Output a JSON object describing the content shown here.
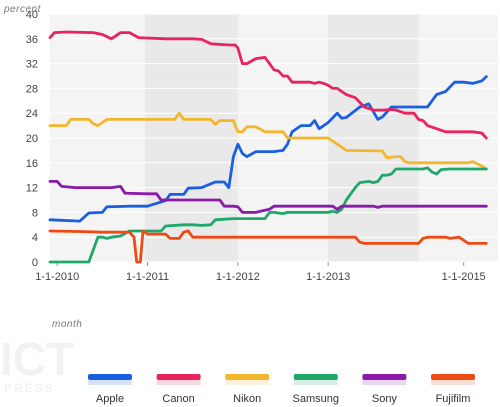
{
  "chart_data": {
    "type": "line",
    "ylabel": "percent",
    "xlabel": "month",
    "ylim": [
      0,
      40
    ],
    "y_ticks": [
      0,
      4,
      8,
      12,
      16,
      20,
      24,
      28,
      32,
      36,
      40
    ],
    "x_ticks": [
      "1-1-2010",
      "1-1-2011",
      "1-1-2012",
      "1-1-2013",
      "1-1-2015"
    ],
    "x_tick_positions": [
      2010,
      2011,
      2012,
      2013,
      2014.5
    ],
    "xlim": [
      2009.92,
      2014.88
    ],
    "grid": true,
    "legend_position": "bottom",
    "series": [
      {
        "name": "Apple",
        "color": "#1a5fe0",
        "points": [
          [
            2009.92,
            6.8
          ],
          [
            2010.25,
            6.6
          ],
          [
            2010.35,
            7.9
          ],
          [
            2010.5,
            8.0
          ],
          [
            2010.55,
            8.9
          ],
          [
            2010.8,
            9.0
          ],
          [
            2011.0,
            9.0
          ],
          [
            2011.2,
            9.9
          ],
          [
            2011.25,
            10.9
          ],
          [
            2011.4,
            10.9
          ],
          [
            2011.45,
            11.9
          ],
          [
            2011.6,
            12.0
          ],
          [
            2011.75,
            12.9
          ],
          [
            2011.85,
            12.9
          ],
          [
            2011.9,
            12.0
          ],
          [
            2011.95,
            17.0
          ],
          [
            2012.0,
            19.0
          ],
          [
            2012.05,
            17.5
          ],
          [
            2012.1,
            17.0
          ],
          [
            2012.2,
            17.8
          ],
          [
            2012.4,
            17.8
          ],
          [
            2012.5,
            18.0
          ],
          [
            2012.55,
            19.0
          ],
          [
            2012.6,
            21.0
          ],
          [
            2012.7,
            22.0
          ],
          [
            2012.8,
            22.0
          ],
          [
            2012.85,
            22.8
          ],
          [
            2012.9,
            21.5
          ],
          [
            2013.0,
            22.5
          ],
          [
            2013.1,
            24.0
          ],
          [
            2013.15,
            23.2
          ],
          [
            2013.2,
            23.3
          ],
          [
            2013.35,
            25.0
          ],
          [
            2013.45,
            25.5
          ],
          [
            2013.55,
            23.0
          ],
          [
            2013.6,
            23.4
          ],
          [
            2013.7,
            25.0
          ],
          [
            2014.0,
            25.0
          ],
          [
            2014.1,
            25.0
          ],
          [
            2014.2,
            27.0
          ],
          [
            2014.3,
            27.5
          ],
          [
            2014.4,
            29.0
          ],
          [
            2014.5,
            29.0
          ],
          [
            2014.6,
            28.8
          ],
          [
            2014.7,
            29.2
          ],
          [
            2014.75,
            29.9
          ]
        ]
      },
      {
        "name": "Canon",
        "color": "#e8245c",
        "points": [
          [
            2009.92,
            36.2
          ],
          [
            2009.97,
            37.0
          ],
          [
            2010.1,
            37.1
          ],
          [
            2010.4,
            37.0
          ],
          [
            2010.5,
            36.7
          ],
          [
            2010.6,
            36.0
          ],
          [
            2010.7,
            37.0
          ],
          [
            2010.8,
            37.0
          ],
          [
            2010.9,
            36.2
          ],
          [
            2011.2,
            36.0
          ],
          [
            2011.5,
            36.0
          ],
          [
            2011.6,
            35.9
          ],
          [
            2011.7,
            35.2
          ],
          [
            2011.9,
            35.0
          ],
          [
            2011.97,
            35.0
          ],
          [
            2012.0,
            34.5
          ],
          [
            2012.05,
            32.0
          ],
          [
            2012.1,
            32.0
          ],
          [
            2012.2,
            32.8
          ],
          [
            2012.3,
            33.0
          ],
          [
            2012.4,
            31.0
          ],
          [
            2012.45,
            30.8
          ],
          [
            2012.5,
            30.0
          ],
          [
            2012.55,
            30.0
          ],
          [
            2012.6,
            29.0
          ],
          [
            2012.8,
            29.0
          ],
          [
            2012.85,
            28.8
          ],
          [
            2012.9,
            29.0
          ],
          [
            2012.95,
            28.8
          ],
          [
            2013.0,
            28.5
          ],
          [
            2013.05,
            28.0
          ],
          [
            2013.1,
            28.0
          ],
          [
            2013.2,
            27.0
          ],
          [
            2013.3,
            26.5
          ],
          [
            2013.4,
            25.0
          ],
          [
            2013.5,
            24.5
          ],
          [
            2013.6,
            24.5
          ],
          [
            2013.7,
            24.6
          ],
          [
            2013.75,
            24.5
          ],
          [
            2013.85,
            24.0
          ],
          [
            2013.95,
            24.0
          ],
          [
            2014.0,
            23.0
          ],
          [
            2014.05,
            22.8
          ],
          [
            2014.1,
            22.0
          ],
          [
            2014.2,
            21.5
          ],
          [
            2014.3,
            21.0
          ],
          [
            2014.6,
            21.0
          ],
          [
            2014.7,
            20.8
          ],
          [
            2014.75,
            20.0
          ]
        ]
      },
      {
        "name": "Nikon",
        "color": "#f2b72c",
        "points": [
          [
            2009.92,
            22.0
          ],
          [
            2010.1,
            22.0
          ],
          [
            2010.15,
            23.0
          ],
          [
            2010.35,
            23.0
          ],
          [
            2010.4,
            22.3
          ],
          [
            2010.45,
            22.0
          ],
          [
            2010.55,
            23.0
          ],
          [
            2010.9,
            23.0
          ],
          [
            2011.1,
            23.0
          ],
          [
            2011.3,
            23.0
          ],
          [
            2011.35,
            24.0
          ],
          [
            2011.4,
            23.0
          ],
          [
            2011.55,
            23.0
          ],
          [
            2011.7,
            23.0
          ],
          [
            2011.75,
            22.2
          ],
          [
            2011.8,
            22.8
          ],
          [
            2011.95,
            22.8
          ],
          [
            2011.97,
            22.0
          ],
          [
            2012.0,
            21.0
          ],
          [
            2012.05,
            21.0
          ],
          [
            2012.1,
            21.8
          ],
          [
            2012.2,
            21.8
          ],
          [
            2012.3,
            21.0
          ],
          [
            2012.5,
            21.0
          ],
          [
            2012.55,
            20.0
          ],
          [
            2012.6,
            20.0
          ],
          [
            2013.0,
            20.0
          ],
          [
            2013.1,
            19.0
          ],
          [
            2013.2,
            18.0
          ],
          [
            2013.6,
            17.9
          ],
          [
            2013.65,
            16.8
          ],
          [
            2013.75,
            17.0
          ],
          [
            2013.8,
            17.0
          ],
          [
            2013.85,
            16.2
          ],
          [
            2013.9,
            16.0
          ],
          [
            2014.4,
            16.0
          ],
          [
            2014.55,
            16.0
          ],
          [
            2014.6,
            16.2
          ],
          [
            2014.7,
            15.5
          ],
          [
            2014.75,
            15.0
          ]
        ]
      },
      {
        "name": "Samsung",
        "color": "#1fa86a",
        "points": [
          [
            2009.92,
            0
          ],
          [
            2010.25,
            0
          ],
          [
            2010.35,
            0
          ],
          [
            2010.45,
            4.0
          ],
          [
            2010.5,
            4.0
          ],
          [
            2010.55,
            3.8
          ],
          [
            2010.6,
            4.0
          ],
          [
            2010.7,
            4.2
          ],
          [
            2010.8,
            5.0
          ],
          [
            2011.0,
            5.0
          ],
          [
            2011.15,
            5.0
          ],
          [
            2011.2,
            5.8
          ],
          [
            2011.4,
            6.0
          ],
          [
            2011.5,
            6.0
          ],
          [
            2011.6,
            5.9
          ],
          [
            2011.7,
            6.0
          ],
          [
            2011.75,
            6.8
          ],
          [
            2011.95,
            7.0
          ],
          [
            2012.0,
            7.0
          ],
          [
            2012.2,
            7.0
          ],
          [
            2012.3,
            7.0
          ],
          [
            2012.35,
            8.0
          ],
          [
            2012.4,
            8.0
          ],
          [
            2012.5,
            7.8
          ],
          [
            2012.55,
            8.0
          ],
          [
            2012.9,
            8.0
          ],
          [
            2013.0,
            8.0
          ],
          [
            2013.05,
            8.2
          ],
          [
            2013.1,
            8.0
          ],
          [
            2013.15,
            8.5
          ],
          [
            2013.2,
            10.0
          ],
          [
            2013.25,
            11.0
          ],
          [
            2013.3,
            12.0
          ],
          [
            2013.35,
            12.8
          ],
          [
            2013.45,
            13.0
          ],
          [
            2013.5,
            12.8
          ],
          [
            2013.55,
            13.0
          ],
          [
            2013.6,
            14.0
          ],
          [
            2013.65,
            14.0
          ],
          [
            2013.7,
            14.2
          ],
          [
            2013.75,
            15.0
          ],
          [
            2013.85,
            15.0
          ],
          [
            2013.95,
            15.0
          ],
          [
            2014.05,
            15.0
          ],
          [
            2014.1,
            15.2
          ],
          [
            2014.15,
            14.5
          ],
          [
            2014.2,
            14.2
          ],
          [
            2014.25,
            14.9
          ],
          [
            2014.35,
            15.0
          ],
          [
            2014.75,
            15.0
          ]
        ]
      },
      {
        "name": "Sony",
        "color": "#8a1aa8",
        "points": [
          [
            2009.92,
            13.0
          ],
          [
            2010.0,
            13.0
          ],
          [
            2010.05,
            12.2
          ],
          [
            2010.2,
            12.0
          ],
          [
            2010.6,
            12.0
          ],
          [
            2010.7,
            12.2
          ],
          [
            2010.75,
            11.1
          ],
          [
            2011.0,
            11.0
          ],
          [
            2011.1,
            11.0
          ],
          [
            2011.15,
            10.0
          ],
          [
            2011.8,
            10.0
          ],
          [
            2011.85,
            9.0
          ],
          [
            2011.95,
            9.0
          ],
          [
            2012.0,
            8.9
          ],
          [
            2012.05,
            8.0
          ],
          [
            2012.2,
            8.0
          ],
          [
            2012.25,
            8.2
          ],
          [
            2012.35,
            8.5
          ],
          [
            2012.4,
            9.0
          ],
          [
            2012.6,
            9.0
          ],
          [
            2013.0,
            9.0
          ],
          [
            2013.05,
            9.0
          ],
          [
            2013.1,
            8.5
          ],
          [
            2013.15,
            9.0
          ],
          [
            2013.5,
            9.0
          ],
          [
            2013.55,
            8.8
          ],
          [
            2013.6,
            9.0
          ],
          [
            2014.75,
            9.0
          ]
        ]
      },
      {
        "name": "Fujifilm",
        "color": "#f04a14",
        "points": [
          [
            2009.92,
            5.0
          ],
          [
            2010.3,
            4.9
          ],
          [
            2010.5,
            4.8
          ],
          [
            2010.8,
            4.8
          ],
          [
            2010.85,
            4.0
          ],
          [
            2010.88,
            0
          ],
          [
            2010.92,
            0
          ],
          [
            2010.95,
            5.0
          ],
          [
            2011.0,
            4.5
          ],
          [
            2011.2,
            4.5
          ],
          [
            2011.25,
            3.8
          ],
          [
            2011.35,
            3.8
          ],
          [
            2011.4,
            4.8
          ],
          [
            2011.45,
            5.0
          ],
          [
            2011.5,
            4.0
          ],
          [
            2011.55,
            4.0
          ],
          [
            2013.2,
            4.0
          ],
          [
            2013.3,
            4.0
          ],
          [
            2013.35,
            3.2
          ],
          [
            2013.4,
            3.0
          ],
          [
            2013.5,
            3.0
          ],
          [
            2013.9,
            3.0
          ],
          [
            2014.0,
            3.0
          ],
          [
            2014.05,
            3.8
          ],
          [
            2014.1,
            4.0
          ],
          [
            2014.3,
            4.0
          ],
          [
            2014.35,
            3.8
          ],
          [
            2014.45,
            4.0
          ],
          [
            2014.55,
            3.0
          ],
          [
            2014.75,
            3.0
          ]
        ]
      }
    ]
  },
  "watermark": {
    "text": "ICT",
    "small_text": "PRESS"
  }
}
